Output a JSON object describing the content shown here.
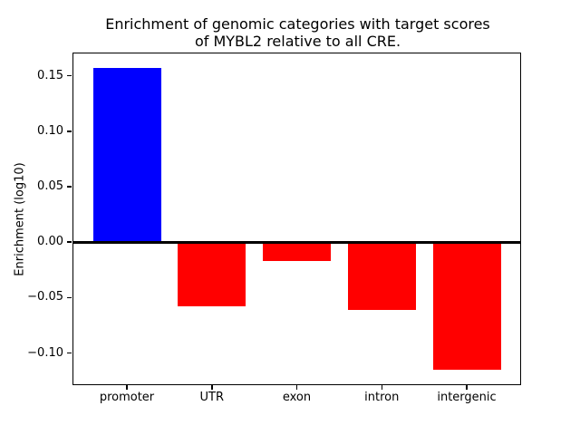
{
  "chart_data": {
    "type": "bar",
    "title": "Enrichment of genomic categories with target scores\nof MYBL2 relative to all CRE.",
    "xlabel": "",
    "ylabel": "Enrichment (log10)",
    "categories": [
      "promoter",
      "UTR",
      "exon",
      "intron",
      "intergenic"
    ],
    "values": [
      0.157,
      -0.058,
      -0.017,
      -0.061,
      -0.115
    ],
    "positive_color": "#0000ff",
    "negative_color": "#ff0000",
    "bar_colors": [
      "#0000ff",
      "#ff0000",
      "#ff0000",
      "#ff0000",
      "#ff0000"
    ],
    "yticks": [
      0.15,
      0.1,
      0.05,
      0.0,
      -0.05,
      -0.1
    ],
    "ytick_labels": [
      "0.15",
      "0.10",
      "0.05",
      "0.00",
      "−0.05",
      "−0.10"
    ],
    "ylim": [
      -0.129,
      0.171
    ],
    "xlim": [
      -0.64,
      4.64
    ],
    "bar_width_units": 0.8,
    "grid": false,
    "legend": null,
    "zero_line": true,
    "zero_line_color": "#000000",
    "background": "#ffffff",
    "text_color": "#000000"
  }
}
